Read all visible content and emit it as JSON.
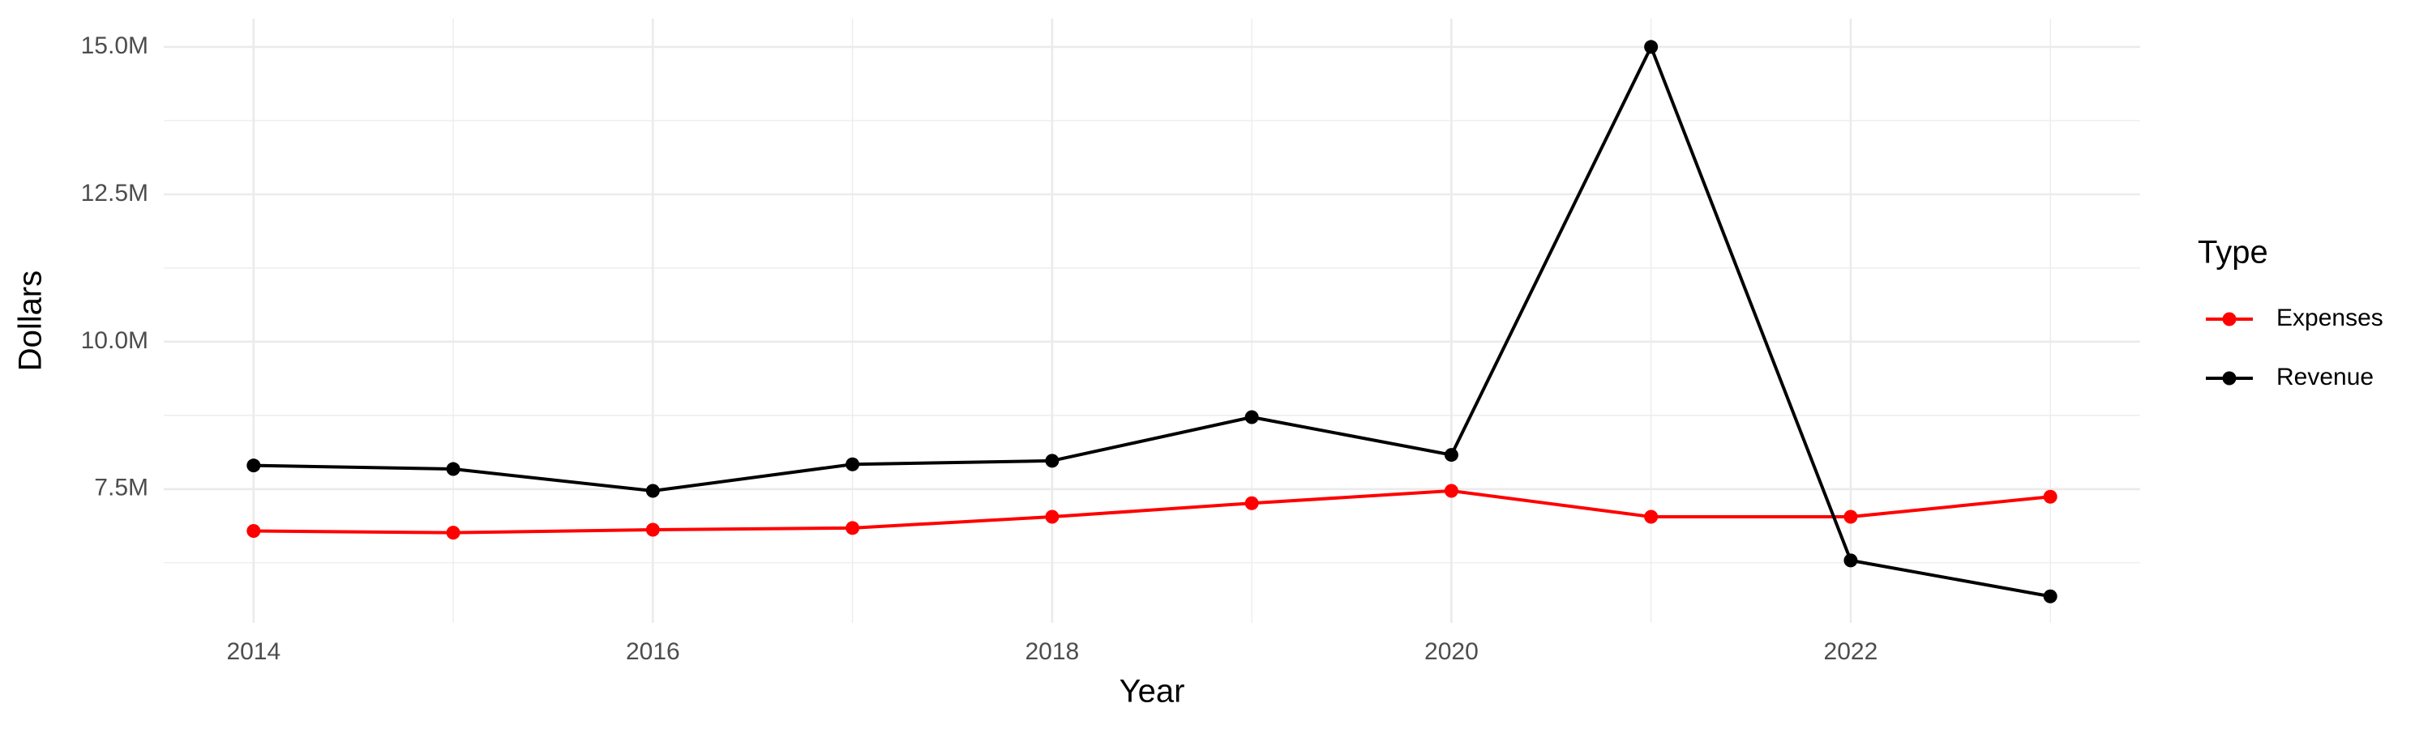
{
  "chart_data": {
    "type": "line",
    "x_label": "Year",
    "y_label": "Dollars",
    "legend_title": "Type",
    "legend_position": "right",
    "grid": true,
    "x": [
      2014,
      2015,
      2016,
      2017,
      2018,
      2019,
      2020,
      2021,
      2022,
      2023
    ],
    "series": [
      {
        "name": "Expenses",
        "color": "#ff0000",
        "values": [
          6790000,
          6760000,
          6810000,
          6840000,
          7030000,
          7260000,
          7470000,
          7030000,
          7030000,
          7370000
        ]
      },
      {
        "name": "Revenue",
        "color": "#000000",
        "values": [
          7900000,
          7840000,
          7470000,
          7920000,
          7980000,
          8720000,
          8080000,
          15000000,
          6290000,
          5680000
        ]
      }
    ],
    "xlim": [
      2013.55,
      2023.45
    ],
    "xticks": [
      2014,
      2016,
      2018,
      2020,
      2022
    ],
    "ylim": [
      5230000,
      15480000
    ],
    "yticks": [
      {
        "value": 7500000,
        "label": "7.5M"
      },
      {
        "value": 10000000,
        "label": "10.0M"
      },
      {
        "value": 12500000,
        "label": "12.5M"
      },
      {
        "value": 15000000,
        "label": "15.0M"
      }
    ]
  }
}
